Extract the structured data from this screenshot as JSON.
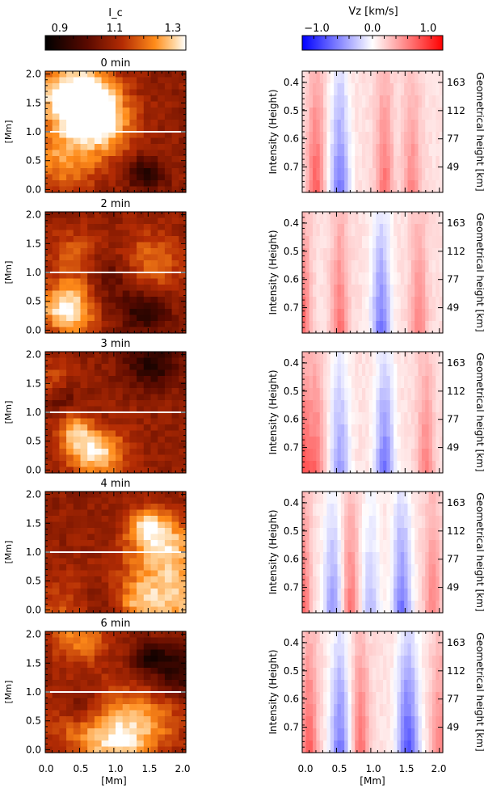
{
  "colorbars": {
    "intensity": {
      "label": "I_c",
      "ticks": [
        "0.9",
        "1.1",
        "1.3"
      ],
      "range": [
        0.8,
        1.35
      ]
    },
    "velocity": {
      "label": "Vz  [km/s]",
      "ticks": [
        "−1.0",
        "0.0",
        "1.0"
      ],
      "range": [
        -1.2,
        1.2
      ]
    }
  },
  "panels": [
    {
      "time_label": "0 min",
      "seed": 11,
      "blue_cols": [
        0.55
      ],
      "red_cols": [
        0.2,
        1.2,
        1.6
      ]
    },
    {
      "time_label": "2 min",
      "seed": 23,
      "blue_cols": [
        1.15
      ],
      "red_cols": [
        0.0,
        0.55,
        1.7
      ]
    },
    {
      "time_label": "3 min",
      "seed": 37,
      "blue_cols": [
        1.2,
        0.55
      ],
      "red_cols": [
        0.0,
        0.2,
        1.8
      ]
    },
    {
      "time_label": "4 min",
      "seed": 41,
      "blue_cols": [
        1.45,
        0.45,
        1.0
      ],
      "red_cols": [
        0.0,
        0.7,
        1.9
      ]
    },
    {
      "time_label": "6 min",
      "seed": 59,
      "blue_cols": [
        0.55,
        1.5,
        1.6
      ],
      "red_cols": [
        0.1,
        0.85,
        2.0
      ]
    }
  ],
  "axes": {
    "spatial_tick_labels": [
      "0.0",
      "0.5",
      "1.0",
      "1.5",
      "2.0"
    ],
    "spatial_unit_label": "[Mm]",
    "optical_depth_label": "Intensity (Height)",
    "optical_depth_ticks": [
      "0.4",
      "0.5",
      "0.6",
      "0.7"
    ],
    "height_label": "Geometrical height [km]",
    "height_ticks": [
      "163",
      "112",
      "77",
      "49"
    ]
  },
  "chart_data": {
    "type": "heatmap",
    "panel_count": 5,
    "time_minutes": [
      0,
      2,
      3,
      4,
      6
    ],
    "x_range_mm": [
      0.0,
      2.05
    ],
    "y_range_mm": [
      -0.05,
      2.05
    ],
    "optical_depth_range": [
      0.36,
      0.79
    ],
    "intensity_colorbar_range": [
      0.8,
      1.35
    ],
    "velocity_colorbar_range_kms": [
      -1.2,
      1.2
    ],
    "cut_line_y_mm": 1.0
  },
  "colors": {
    "line": "#ffffff",
    "blue": "#0000ff",
    "red": "#ff0000"
  }
}
